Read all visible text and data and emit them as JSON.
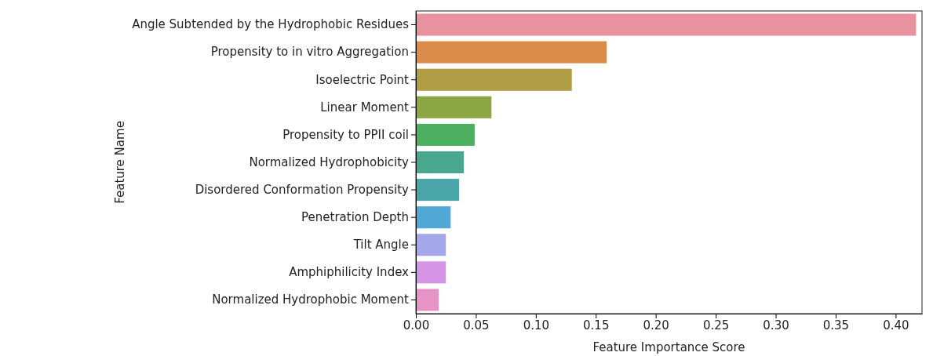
{
  "chart_data": {
    "type": "bar",
    "orientation": "horizontal",
    "xlabel": "Feature Importance Score",
    "ylabel": "Feature Name",
    "categories": [
      "Angle Subtended by the Hydrophobic Residues",
      "Propensity to in vitro Aggregation",
      "Isoelectric Point",
      "Linear Moment",
      "Propensity to PPII coil",
      "Normalized Hydrophobicity",
      "Disordered Conformation Propensity",
      "Penetration Depth",
      "Tilt Angle",
      "Amphiphilicity Index",
      "Normalized Hydrophobic Moment"
    ],
    "values": [
      0.417,
      0.159,
      0.13,
      0.063,
      0.049,
      0.04,
      0.036,
      0.029,
      0.025,
      0.025,
      0.019
    ],
    "colors": [
      "#e8919f",
      "#dc8c4a",
      "#b09c45",
      "#8da644",
      "#4db060",
      "#48a78c",
      "#4aa5a8",
      "#52a8d4",
      "#a4a8ea",
      "#d594e6",
      "#e693c6"
    ],
    "xlim": [
      0,
      0.422
    ],
    "xticks": [
      {
        "value": 0,
        "label": "0.00"
      },
      {
        "value": 0.05,
        "label": "0.05"
      },
      {
        "value": 0.1,
        "label": "0.10"
      },
      {
        "value": 0.15,
        "label": "0.15"
      },
      {
        "value": 0.2,
        "label": "0.20"
      },
      {
        "value": 0.25,
        "label": "0.25"
      },
      {
        "value": 0.3,
        "label": "0.30"
      },
      {
        "value": 0.35,
        "label": "0.35"
      },
      {
        "value": 0.4,
        "label": "0.40"
      }
    ],
    "grid": false
  }
}
